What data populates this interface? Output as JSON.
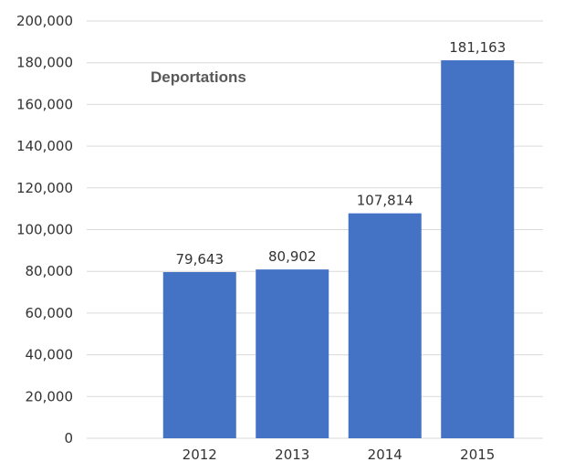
{
  "chart_data": {
    "type": "bar",
    "title": "Deportations",
    "categories": [
      "2012",
      "2013",
      "2014",
      "2015"
    ],
    "values": [
      79643,
      80902,
      107814,
      181163
    ],
    "data_labels": [
      "79,643",
      "80,902",
      "107,814",
      "181,163"
    ],
    "y_ticks": [
      0,
      20000,
      40000,
      60000,
      80000,
      100000,
      120000,
      140000,
      160000,
      180000,
      200000
    ],
    "y_tick_labels": [
      "0",
      "20,000",
      "40,000",
      "60,000",
      "80,000",
      "100,000",
      "120,000",
      "140,000",
      "160,000",
      "180,000",
      "200,000"
    ],
    "ylim": [
      0,
      200000
    ],
    "xlabel": "",
    "ylabel": "",
    "grid": true,
    "legend": "none",
    "colors": {
      "bar": "#4472C4",
      "grid": "#D9D9D9",
      "text": "#333333",
      "title": "#595959"
    }
  }
}
